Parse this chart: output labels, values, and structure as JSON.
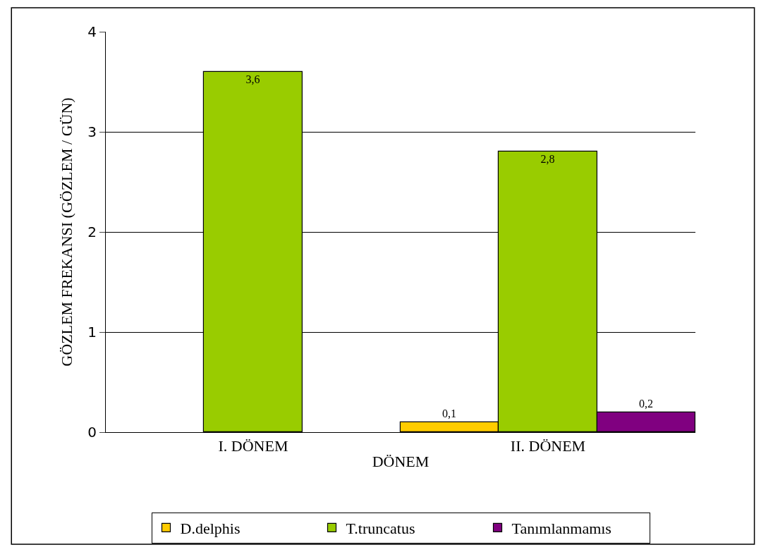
{
  "chart_data": {
    "type": "bar",
    "xlabel": "DÖNEM",
    "ylabel": "GÖZLEM FREKANSI (GÖZLEM / GÜN)",
    "categories": [
      "I. DÖNEM",
      "II. DÖNEM"
    ],
    "series": [
      {
        "name": "D.delphis",
        "color": "#ffcc00",
        "values": [
          null,
          0.1
        ],
        "value_labels": [
          null,
          "0,1"
        ]
      },
      {
        "name": "T.truncatus",
        "color": "#99cc00",
        "values": [
          3.6,
          2.8
        ],
        "value_labels": [
          "3,6",
          "2,8"
        ]
      },
      {
        "name": "Tanımlanmamıs",
        "color": "#800080",
        "values": [
          null,
          0.2
        ],
        "value_labels": [
          null,
          "0,2"
        ]
      }
    ],
    "ylim": [
      0,
      4
    ],
    "yticks": [
      0,
      1,
      2,
      3,
      4
    ],
    "grid": "y",
    "legend": "bottom"
  }
}
